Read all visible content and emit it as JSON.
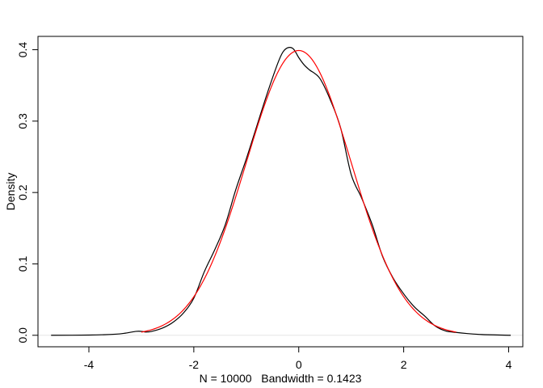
{
  "chart_data": {
    "type": "line",
    "title": "",
    "xlabel": "N = 10000   Bandwidth = 0.1423",
    "ylabel": "Density",
    "xlim": [
      -4.97,
      4.27
    ],
    "ylim": [
      -0.0161,
      0.4187
    ],
    "grid": false,
    "legend": "none",
    "x_ticks": [
      {
        "value": -4,
        "label": "-4"
      },
      {
        "value": -2,
        "label": "-2"
      },
      {
        "value": 0,
        "label": "0"
      },
      {
        "value": 2,
        "label": "2"
      },
      {
        "value": 4,
        "label": "4"
      }
    ],
    "y_ticks": [
      {
        "value": 0.0,
        "label": "0.0"
      },
      {
        "value": 0.1,
        "label": "0.1"
      },
      {
        "value": 0.2,
        "label": "0.2"
      },
      {
        "value": 0.3,
        "label": "0.3"
      },
      {
        "value": 0.4,
        "label": "0.4"
      }
    ],
    "baseline": {
      "y": 0,
      "color": "#e6e6e6"
    },
    "series": [
      {
        "color": "#000000",
        "x": [
          -4.72,
          -4.0,
          -3.5,
          -3.3,
          -3.1,
          -3.0,
          -2.9,
          -2.8,
          -2.6,
          -2.4,
          -2.2,
          -2.0,
          -1.8,
          -1.6,
          -1.4,
          -1.2,
          -1.0,
          -0.8,
          -0.6,
          -0.4,
          -0.3,
          -0.2,
          -0.1,
          0.0,
          0.1,
          0.2,
          0.4,
          0.6,
          0.8,
          1.0,
          1.2,
          1.4,
          1.6,
          1.8,
          2.0,
          2.2,
          2.4,
          2.6,
          2.8,
          3.0,
          3.2,
          3.5,
          4.04
        ],
        "y": [
          0.0,
          0.0003,
          0.0015,
          0.003,
          0.0055,
          0.0055,
          0.0045,
          0.0055,
          0.01,
          0.018,
          0.031,
          0.052,
          0.089,
          0.12,
          0.155,
          0.204,
          0.247,
          0.293,
          0.339,
          0.381,
          0.397,
          0.403,
          0.401,
          0.389,
          0.379,
          0.372,
          0.36,
          0.33,
          0.29,
          0.225,
          0.192,
          0.155,
          0.11,
          0.08,
          0.058,
          0.04,
          0.027,
          0.013,
          0.006,
          0.004,
          0.0025,
          0.001,
          0.0
        ]
      },
      {
        "color": "#ff0000",
        "function": "standard-normal-pdf",
        "x_range": [
          -3.0,
          3.0
        ],
        "samples": 241
      }
    ]
  }
}
